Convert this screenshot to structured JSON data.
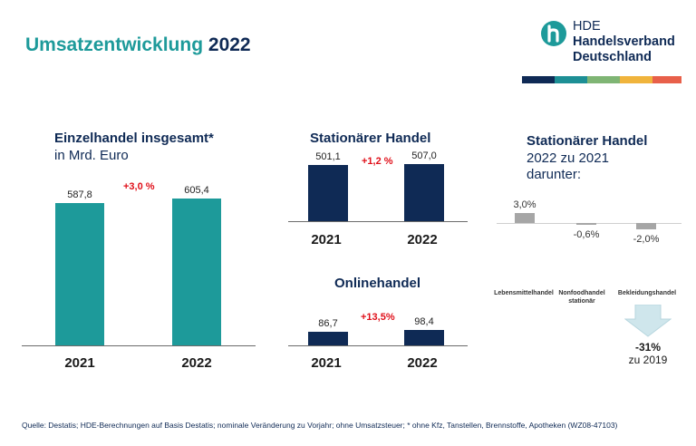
{
  "title": {
    "main": "Umsatzentwicklung",
    "year": "2022"
  },
  "logo": {
    "line1": "HDE",
    "line2": "Handelsverband",
    "line3": "Deutschland"
  },
  "colors": {
    "teal": "#1d9a9a",
    "navy": "#0f2a55",
    "grey_bar": "#a6a6a6",
    "red": "#e0101a",
    "stripes": [
      "#0f2a55",
      "#1d8f95",
      "#7fb574",
      "#f0b43c",
      "#e8604a"
    ]
  },
  "chart_data": [
    {
      "type": "bar",
      "title": "Einzelhandel insgesamt*",
      "subtitle": "in Mrd. Euro",
      "categories": [
        "2021",
        "2022"
      ],
      "values": [
        587.8,
        605.4
      ],
      "value_labels": [
        "587,8",
        "605,4"
      ],
      "change_label": "+3,0 %",
      "ylim": [
        0,
        680
      ]
    },
    {
      "type": "bar",
      "title": "Stationärer Handel",
      "categories": [
        "2021",
        "2022"
      ],
      "values": [
        501.1,
        507.0
      ],
      "value_labels": [
        "501,1",
        "507,0"
      ],
      "change_label": "+1,2 %",
      "ylim": [
        0,
        530
      ]
    },
    {
      "type": "bar",
      "title": "Onlinehandel",
      "categories": [
        "2021",
        "2022"
      ],
      "values": [
        86.7,
        98.4
      ],
      "value_labels": [
        "86,7",
        "98,4"
      ],
      "change_label": "+13,5%",
      "ylim": [
        0,
        105
      ]
    },
    {
      "type": "bar",
      "title": "Stationärer Handel",
      "subtitle_lines": [
        "2022 zu 2021",
        "darunter:"
      ],
      "categories": [
        "Lebensmittelhandel",
        "Nonfoodhandel stationär",
        "Bekleidungshandel"
      ],
      "values": [
        3.0,
        -0.6,
        -2.0
      ],
      "value_labels": [
        "3,0%",
        "-0,6%",
        "-2,0%"
      ],
      "ylim": [
        -3,
        4
      ],
      "callout": {
        "value": "-31%",
        "label": "zu 2019"
      }
    }
  ],
  "footer": "Quelle: Destatis; HDE-Berechnungen auf Basis Destatis; nominale Veränderung zu Vorjahr; ohne Umsatzsteuer; * ohne Kfz, Tanstellen, Brennstoffe, Apotheken (WZ08-47103)"
}
